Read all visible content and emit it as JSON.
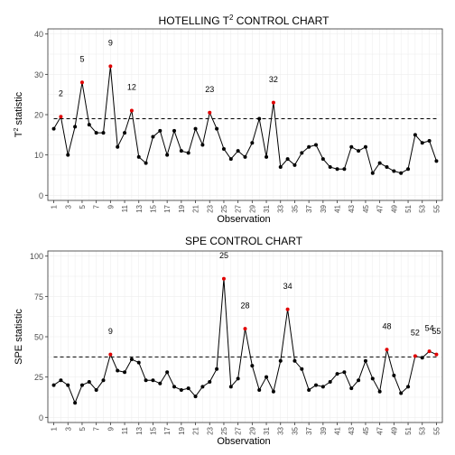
{
  "chart_data": [
    {
      "type": "line",
      "title": "HOTELLING T² CONTROL CHART",
      "title_main": "HOTELLING T",
      "title_sup": "2",
      "title_rest": " CONTROL CHART",
      "xlabel": "Observation",
      "ylabel_main": "T",
      "ylabel_sup": "2",
      "ylabel_rest": " statistic",
      "xlim": [
        1,
        55
      ],
      "ylim": [
        0,
        40
      ],
      "yticks": [
        0,
        10,
        20,
        30,
        40
      ],
      "xticks": [
        1,
        3,
        5,
        7,
        9,
        11,
        13,
        15,
        17,
        19,
        21,
        23,
        25,
        27,
        29,
        31,
        33,
        35,
        37,
        39,
        41,
        43,
        45,
        47,
        49,
        51,
        53,
        55
      ],
      "grid": true,
      "control_limit": 19.0,
      "series": [
        {
          "x": [
            1,
            2,
            3,
            4,
            5,
            6,
            7,
            8,
            9,
            10,
            11,
            12,
            13,
            14,
            15,
            16,
            17,
            18,
            19,
            20,
            21,
            22,
            23,
            24,
            25,
            26,
            27,
            28,
            29,
            30,
            31,
            32,
            33,
            34,
            35,
            36,
            37,
            38,
            39,
            40,
            41,
            42,
            43,
            44,
            45,
            46,
            47,
            48,
            49,
            50,
            51,
            52,
            53,
            54,
            55
          ],
          "values": [
            16.5,
            19.5,
            10.0,
            17.0,
            28.0,
            17.5,
            15.5,
            15.5,
            32.0,
            12.0,
            15.5,
            21.0,
            9.5,
            8.0,
            14.5,
            16.0,
            10.0,
            16.0,
            11.0,
            10.5,
            16.5,
            12.5,
            20.5,
            16.5,
            11.5,
            9.0,
            11.0,
            9.5,
            13.0,
            19.0,
            9.5,
            23.0,
            7.0,
            9.0,
            7.5,
            10.5,
            12.0,
            12.5,
            9.0,
            7.0,
            6.5,
            6.5,
            12.0,
            11.0,
            12.0,
            5.5,
            8.0,
            7.0,
            6.0,
            5.5,
            6.5,
            15.0,
            13.0,
            13.5,
            8.5
          ]
        }
      ],
      "flagged": [
        2,
        5,
        9,
        12,
        23,
        32
      ],
      "annotations": [
        "2",
        "5",
        "9",
        "12",
        "23",
        "32"
      ]
    },
    {
      "type": "line",
      "title": "SPE CONTROL CHART",
      "xlabel": "Observation",
      "ylabel": "SPE statistic",
      "xlim": [
        1,
        55
      ],
      "ylim": [
        0,
        100
      ],
      "yticks": [
        0,
        25,
        50,
        75,
        100
      ],
      "xticks": [
        1,
        3,
        5,
        7,
        9,
        11,
        13,
        15,
        17,
        19,
        21,
        23,
        25,
        27,
        29,
        31,
        33,
        35,
        37,
        39,
        41,
        43,
        45,
        47,
        49,
        51,
        53,
        55
      ],
      "grid": true,
      "control_limit": 37.5,
      "series": [
        {
          "x": [
            1,
            2,
            3,
            4,
            5,
            6,
            7,
            8,
            9,
            10,
            11,
            12,
            13,
            14,
            15,
            16,
            17,
            18,
            19,
            20,
            21,
            22,
            23,
            24,
            25,
            26,
            27,
            28,
            29,
            30,
            31,
            32,
            33,
            34,
            35,
            36,
            37,
            38,
            39,
            40,
            41,
            42,
            43,
            44,
            45,
            46,
            47,
            48,
            49,
            50,
            51,
            52,
            53,
            54,
            55
          ],
          "values": [
            20,
            23,
            20,
            9,
            20,
            22,
            17,
            23,
            39,
            29,
            28,
            36,
            34,
            23,
            23,
            21,
            28,
            19,
            17,
            18,
            13,
            19,
            22,
            30,
            86,
            19,
            24,
            55,
            32,
            17,
            25,
            16,
            35,
            67,
            35,
            30,
            17,
            20,
            19,
            22,
            27,
            28,
            18,
            23,
            35,
            24,
            16,
            42,
            26,
            15,
            19,
            38,
            37,
            41,
            39
          ]
        }
      ],
      "flagged": [
        9,
        25,
        28,
        34,
        48,
        52,
        54,
        55
      ],
      "annotations": [
        "9",
        "25",
        "28",
        "34",
        "48",
        "52",
        "54",
        "55"
      ]
    }
  ]
}
